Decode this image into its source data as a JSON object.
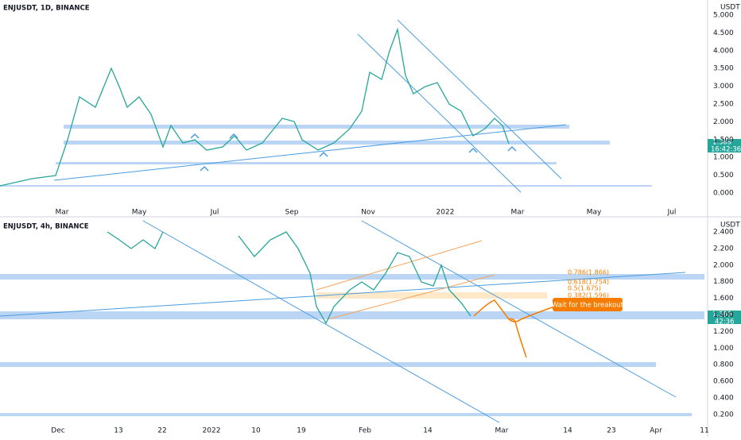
{
  "top_chart": {
    "title": "ENJUSDT, 1D, BINANCE",
    "currency": "USDT",
    "price_axis": [
      "5.000",
      "4.500",
      "4.000",
      "3.500",
      "3.000",
      "2.500",
      "2.000",
      "1.500",
      "1.000",
      "0.500",
      "0.000"
    ],
    "time_axis": [
      "Mar",
      "May",
      "Jul",
      "Sep",
      "Nov",
      "2022",
      "Mar",
      "May",
      "Jul"
    ],
    "last_price": "1.389",
    "countdown": "16:42:36"
  },
  "bottom_chart": {
    "title": "ENJUSDT, 4h, BINANCE",
    "currency": "USDT",
    "price_axis": [
      "2.400",
      "2.200",
      "2.000",
      "1.800",
      "1.600",
      "1.400",
      "1.200",
      "1.000",
      "0.800",
      "0.600",
      "0.400",
      "0.200"
    ],
    "time_axis": [
      "Dec",
      "13",
      "22",
      "2022",
      "10",
      "19",
      "Feb",
      "14",
      "Mar",
      "14",
      "23",
      "Apr",
      "11"
    ],
    "fib_levels": [
      "0.786(1.866)",
      "0.618(1.754)",
      "0.5(1.675)",
      "0.382(1.596)"
    ],
    "annotation": "Wait for the breakout",
    "last_price": "1.389",
    "countdown": "42:36"
  }
}
